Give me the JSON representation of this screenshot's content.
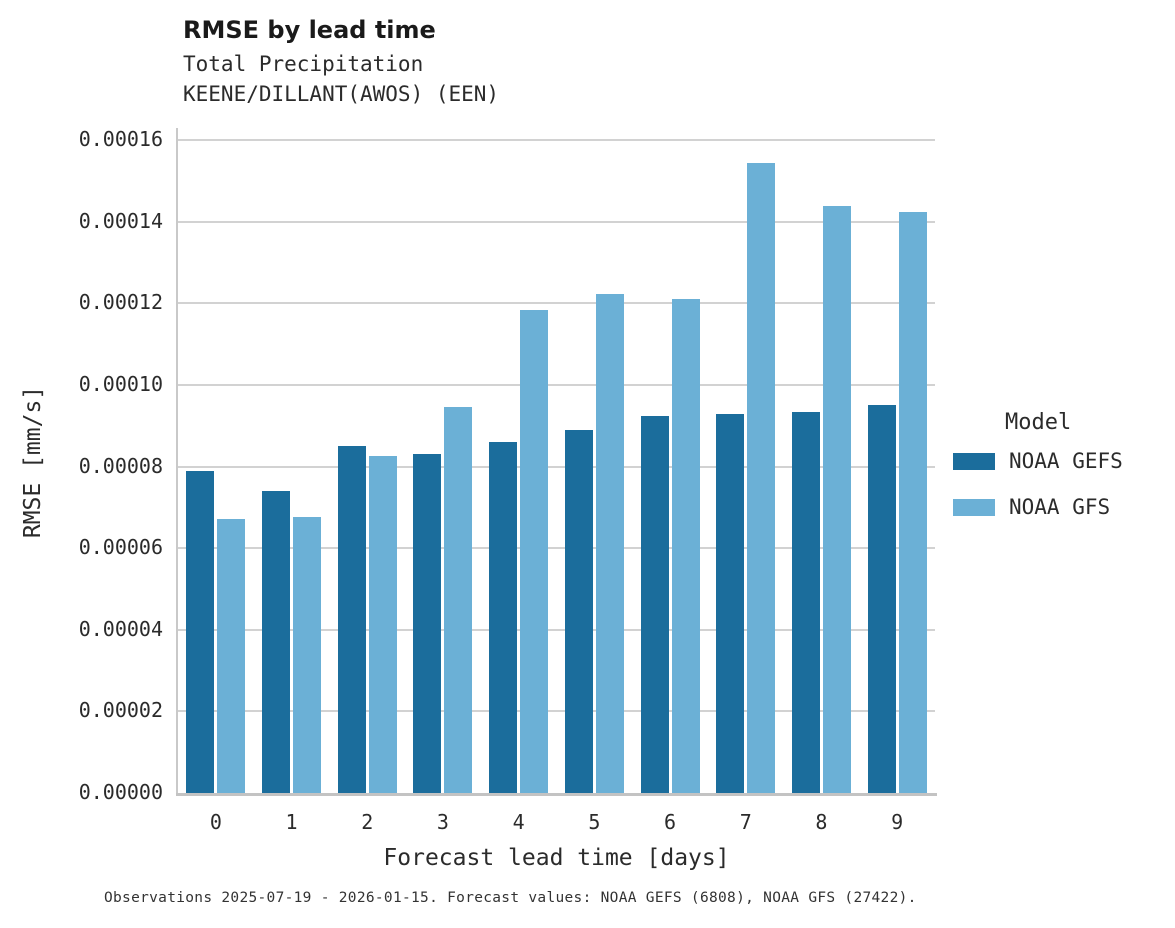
{
  "header": {
    "title": "RMSE by lead time",
    "subtitle1": "Total Precipitation",
    "subtitle2": "KEENE/DILLANT(AWOS) (EEN)"
  },
  "footer": {
    "note": "Observations 2025-07-19 - 2026-01-15. Forecast values: NOAA GEFS (6808), NOAA GFS (27422)."
  },
  "legend": {
    "title": "Model",
    "position": "right-outside"
  },
  "colors": {
    "gefs": "#1b6d9c",
    "gfs": "#6bb0d6",
    "grid": "#d2d2d2",
    "text": "#2b2b2b"
  },
  "chart_data": {
    "type": "bar",
    "title": "RMSE by lead time",
    "subtitle": [
      "Total Precipitation",
      "KEENE/DILLANT(AWOS) (EEN)"
    ],
    "categories": [
      "0",
      "1",
      "2",
      "3",
      "4",
      "5",
      "6",
      "7",
      "8",
      "9"
    ],
    "series": [
      {
        "name": "NOAA GEFS",
        "color": "#1b6d9c",
        "values": [
          7.9e-05,
          7.4e-05,
          8.5e-05,
          8.3e-05,
          8.6e-05,
          8.9e-05,
          9.24e-05,
          9.29e-05,
          9.35e-05,
          9.5e-05
        ]
      },
      {
        "name": "NOAA GFS",
        "color": "#6bb0d6",
        "values": [
          6.72e-05,
          6.76e-05,
          8.27e-05,
          9.45e-05,
          0.0001185,
          0.0001222,
          0.000121,
          0.0001545,
          0.000144,
          0.0001424
        ]
      }
    ],
    "xlabel": "Forecast lead time [days]",
    "ylabel": "RMSE [mm/s]",
    "ylim": [
      0,
      0.000163
    ],
    "ytick_step": 2e-05,
    "ytick_max": 0.00016,
    "ytick_decimals": 5,
    "grid": true,
    "legend_title": "Model",
    "legend_position": "right",
    "footnote": "Observations 2025-07-19 - 2026-01-15. Forecast values: NOAA GEFS (6808), NOAA GFS (27422)."
  }
}
